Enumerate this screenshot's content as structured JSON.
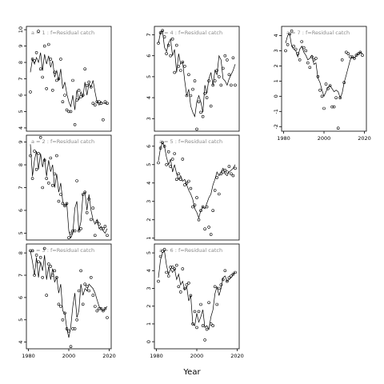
{
  "xlabel": "Year",
  "chart_data": {
    "type": "line",
    "title": "",
    "xlabel": "Year",
    "ylabel": "",
    "grid": false,
    "legend": "none",
    "xlim": [
      1979,
      2021
    ],
    "x_ticks": [
      1980,
      2000,
      2020
    ],
    "line_series_name": "",
    "points_series_name": "",
    "panels": [
      {
        "label": "a = 1  :  f=Residual catch",
        "row": 0,
        "col": 0,
        "ylim": [
          3.8,
          10.2
        ],
        "y_ticks": [
          4,
          5,
          6,
          7,
          8,
          9,
          10
        ],
        "show_x_ticks": false,
        "x": [
          1981,
          1982,
          1983,
          1984,
          1985,
          1986,
          1987,
          1988,
          1989,
          1990,
          1991,
          1992,
          1993,
          1994,
          1995,
          1996,
          1997,
          1998,
          1999,
          2000,
          2001,
          2002,
          2003,
          2004,
          2005,
          2006,
          2007,
          2008,
          2009,
          2010,
          2011,
          2012,
          2013,
          2014,
          2015,
          2016,
          2017,
          2018,
          2019
        ],
        "line": [
          7.4,
          8.2,
          7.9,
          8.3,
          8.0,
          8.6,
          7.5,
          8.5,
          7.9,
          8.4,
          7.7,
          8.1,
          7.1,
          7.5,
          6.9,
          7.6,
          6.4,
          6.8,
          6.1,
          5.6,
          5.3,
          6.0,
          5.1,
          6.3,
          5.7,
          6.2,
          5.9,
          6.8,
          6.0,
          6.7,
          6.5,
          6.9,
          6.2,
          5.6,
          5.4,
          5.6,
          5.5,
          5.5,
          5.5
        ],
        "points": [
          6.2,
          8.2,
          8.1,
          8.6,
          9.9,
          7.6,
          7.1,
          9.0,
          6.4,
          9.1,
          8.2,
          6.3,
          7.4,
          6.9,
          7.0,
          8.2,
          5.6,
          6.0,
          5.1,
          5.0,
          5.0,
          6.9,
          4.2,
          5.7,
          6.3,
          5.9,
          6.0,
          7.6,
          6.6,
          6.8,
          6.5,
          5.5,
          5.4,
          5.6,
          5.6,
          5.5,
          4.5,
          5.6,
          5.5
        ]
      },
      {
        "label": "a = 2  :  f=Residual catch",
        "row": 1,
        "col": 0,
        "ylim": [
          4.7,
          9.3
        ],
        "y_ticks": [
          5,
          6,
          7,
          8,
          9
        ],
        "show_x_ticks": false,
        "x": [
          1981,
          1982,
          1983,
          1984,
          1985,
          1986,
          1987,
          1988,
          1989,
          1990,
          1991,
          1992,
          1993,
          1994,
          1995,
          1996,
          1997,
          1998,
          1999,
          2000,
          2001,
          2002,
          2003,
          2004,
          2005,
          2006,
          2007,
          2008,
          2009,
          2010,
          2011,
          2012,
          2013,
          2014,
          2015,
          2016,
          2017,
          2018,
          2019
        ],
        "line": [
          8.9,
          7.5,
          8.2,
          8.6,
          7.8,
          8.5,
          7.9,
          8.3,
          7.5,
          8.2,
          7.7,
          8.0,
          7.0,
          7.6,
          6.8,
          7.2,
          6.4,
          6.2,
          6.3,
          5.1,
          4.8,
          5.0,
          6.1,
          6.4,
          5.1,
          5.5,
          6.7,
          6.8,
          6.0,
          6.7,
          6.0,
          5.6,
          5.4,
          5.6,
          5.2,
          5.3,
          5.1,
          5.0,
          5.2
        ],
        "points": [
          8.4,
          7.4,
          8.6,
          7.8,
          8.5,
          9.2,
          7.0,
          8.2,
          7.4,
          7.2,
          8.3,
          7.1,
          7.6,
          8.4,
          6.4,
          6.7,
          6.3,
          6.2,
          6.3,
          4.8,
          5.0,
          5.1,
          5.1,
          7.3,
          5.1,
          5.2,
          6.7,
          6.8,
          5.9,
          6.5,
          5.6,
          6.1,
          4.9,
          5.5,
          5.4,
          5.2,
          5.2,
          5.3,
          4.9
        ]
      },
      {
        "label": "a = 3  :  f=Residual catch",
        "row": 2,
        "col": 0,
        "ylim": [
          3.7,
          8.4
        ],
        "y_ticks": [
          4,
          5,
          6,
          7,
          8
        ],
        "show_x_ticks": true,
        "x": [
          1981,
          1982,
          1983,
          1984,
          1985,
          1986,
          1987,
          1988,
          1989,
          1990,
          1991,
          1992,
          1993,
          1994,
          1995,
          1996,
          1997,
          1998,
          1999,
          2000,
          2001,
          2002,
          2003,
          2004,
          2005,
          2006,
          2007,
          2008,
          2009,
          2010,
          2011,
          2012,
          2013,
          2014,
          2015,
          2016,
          2017,
          2018,
          2019
        ],
        "line": [
          8.1,
          7.6,
          7.0,
          7.8,
          6.9,
          7.6,
          7.2,
          7.9,
          6.8,
          7.4,
          6.8,
          7.3,
          6.7,
          6.9,
          6.2,
          6.6,
          5.4,
          5.3,
          4.6,
          4.2,
          4.7,
          5.6,
          6.2,
          5.1,
          5.4,
          6.6,
          6.1,
          6.4,
          6.3,
          6.6,
          6.5,
          6.4,
          6.2,
          5.9,
          5.6,
          5.5,
          5.4,
          5.5,
          5.6
        ],
        "points": [
          8.1,
          8.1,
          7.0,
          7.9,
          7.6,
          7.8,
          6.9,
          8.2,
          6.1,
          7.5,
          7.4,
          7.0,
          7.2,
          6.9,
          5.7,
          5.6,
          5.0,
          5.3,
          4.6,
          4.5,
          3.8,
          4.6,
          4.6,
          5.0,
          6.3,
          7.2,
          5.7,
          6.6,
          6.5,
          6.3,
          6.9,
          6.1,
          5.6,
          5.4,
          5.5,
          5.5,
          5.4,
          5.5,
          5.1
        ]
      },
      {
        "label": "a = 4  :  f=Residual catch",
        "row": 0,
        "col": 1,
        "ylim": [
          2.4,
          7.4
        ],
        "y_ticks": [
          3,
          4,
          5,
          6,
          7
        ],
        "show_x_ticks": false,
        "x": [
          1981,
          1982,
          1983,
          1984,
          1985,
          1986,
          1987,
          1988,
          1989,
          1990,
          1991,
          1992,
          1993,
          1994,
          1995,
          1996,
          1997,
          1998,
          1999,
          2000,
          2001,
          2002,
          2003,
          2004,
          2005,
          2006,
          2007,
          2008,
          2009,
          2010,
          2011,
          2012,
          2013,
          2014,
          2015,
          2016,
          2017,
          2018,
          2019
        ],
        "line": [
          6.6,
          7.1,
          7.2,
          6.4,
          6.2,
          6.6,
          6.8,
          6.0,
          6.3,
          5.2,
          6.1,
          5.6,
          5.7,
          4.8,
          4.1,
          4.4,
          3.6,
          3.3,
          3.1,
          3.8,
          4.1,
          3.8,
          3.3,
          4.6,
          4.2,
          4.9,
          5.2,
          4.6,
          5.3,
          5.1,
          6.0,
          5.8,
          4.9,
          4.8,
          4.6,
          4.9,
          5.1,
          5.3,
          5.6
        ],
        "points": [
          6.6,
          7.1,
          7.2,
          6.9,
          6.1,
          6.5,
          6.0,
          6.8,
          5.2,
          6.5,
          5.5,
          5.3,
          5.7,
          5.5,
          4.1,
          5.1,
          4.1,
          4.4,
          4.8,
          2.5,
          3.8,
          3.3,
          3.1,
          4.2,
          4.0,
          4.8,
          3.6,
          4.6,
          4.8,
          5.3,
          5.0,
          4.6,
          5.4,
          6.0,
          5.8,
          5.1,
          4.6,
          5.9,
          4.6
        ]
      },
      {
        "label": "a = 5  :  f=Residual catch",
        "row": 1,
        "col": 1,
        "ylim": [
          0.9,
          6.6
        ],
        "y_ticks": [
          1,
          2,
          3,
          4,
          5,
          6
        ],
        "show_x_ticks": false,
        "x": [
          1981,
          1982,
          1983,
          1984,
          1985,
          1986,
          1987,
          1988,
          1989,
          1990,
          1991,
          1992,
          1993,
          1994,
          1995,
          1996,
          1997,
          1998,
          1999,
          2000,
          2001,
          2002,
          2003,
          2004,
          2005,
          2006,
          2007,
          2008,
          2009,
          2010,
          2011,
          2012,
          2013,
          2014,
          2015,
          2016,
          2017,
          2018,
          2019
        ],
        "line": [
          5.2,
          5.9,
          6.2,
          6.0,
          5.4,
          5.0,
          5.3,
          4.6,
          5.0,
          4.5,
          4.2,
          4.4,
          4.1,
          4.2,
          3.9,
          3.6,
          3.4,
          3.1,
          2.6,
          2.4,
          2.1,
          2.5,
          2.7,
          2.6,
          2.9,
          3.2,
          3.4,
          3.9,
          4.2,
          4.6,
          4.4,
          4.6,
          4.8,
          4.5,
          4.4,
          4.6,
          4.7,
          4.8,
          5.0
        ],
        "points": [
          5.1,
          5.9,
          6.2,
          6.0,
          5.0,
          5.7,
          4.9,
          5.3,
          5.6,
          4.2,
          4.5,
          4.2,
          5.3,
          3.9,
          4.0,
          4.1,
          3.7,
          2.7,
          2.8,
          3.2,
          2.0,
          2.5,
          2.7,
          1.5,
          2.7,
          1.6,
          1.2,
          2.5,
          3.6,
          4.3,
          3.4,
          4.5,
          4.6,
          4.7,
          4.6,
          4.9,
          4.5,
          4.4,
          4.8
        ]
      },
      {
        "label": "a = 6  :  f=Residual catch",
        "row": 2,
        "col": 1,
        "ylim": [
          -0.4,
          5.5
        ],
        "y_ticks": [
          0,
          1,
          2,
          3,
          4,
          5
        ],
        "show_x_ticks": true,
        "x": [
          1981,
          1982,
          1983,
          1984,
          1985,
          1986,
          1987,
          1988,
          1989,
          1990,
          1991,
          1992,
          1993,
          1994,
          1995,
          1996,
          1997,
          1998,
          1999,
          2000,
          2001,
          2002,
          2003,
          2004,
          2005,
          2006,
          2007,
          2008,
          2009,
          2010,
          2011,
          2012,
          2013,
          2014,
          2015,
          2016,
          2017,
          2018,
          2019
        ],
        "line": [
          3.6,
          4.6,
          5.0,
          5.1,
          4.3,
          3.8,
          4.1,
          3.9,
          4.1,
          3.5,
          3.8,
          3.2,
          3.4,
          2.9,
          3.1,
          2.3,
          2.6,
          1.0,
          0.9,
          1.6,
          1.1,
          1.4,
          1.8,
          0.8,
          0.9,
          0.7,
          1.4,
          1.8,
          2.7,
          3.1,
          2.6,
          3.0,
          3.6,
          3.7,
          3.4,
          3.5,
          3.6,
          3.8,
          3.9
        ],
        "points": [
          3.4,
          4.8,
          5.1,
          5.2,
          3.9,
          3.7,
          4.2,
          4.2,
          4.1,
          4.3,
          3.1,
          2.8,
          4.1,
          3.0,
          3.2,
          3.3,
          2.6,
          1.0,
          1.7,
          0.8,
          1.7,
          2.1,
          0.9,
          0.1,
          0.7,
          2.2,
          1.0,
          0.9,
          3.1,
          2.1,
          3.0,
          3.2,
          3.5,
          4.0,
          3.4,
          3.6,
          3.7,
          3.8,
          3.9
        ]
      },
      {
        "label": "a = 7  :  f=Residual catch",
        "row": 0,
        "col": 2,
        "ylim": [
          -2.3,
          4.6
        ],
        "y_ticks": [
          -2,
          -1,
          0,
          1,
          2,
          3,
          4
        ],
        "show_x_ticks": true,
        "x": [
          1981,
          1982,
          1983,
          1984,
          1985,
          1986,
          1987,
          1988,
          1989,
          1990,
          1991,
          1992,
          1993,
          1994,
          1995,
          1996,
          1997,
          1998,
          1999,
          2000,
          2001,
          2002,
          2003,
          2004,
          2005,
          2006,
          2007,
          2008,
          2009,
          2010,
          2011,
          2012,
          2013,
          2014,
          2015,
          2016,
          2017,
          2018,
          2019
        ],
        "line": [
          3.5,
          4.0,
          4.1,
          3.3,
          3.1,
          3.0,
          2.6,
          3.1,
          3.3,
          2.9,
          2.7,
          2.4,
          2.5,
          2.7,
          2.1,
          2.2,
          1.2,
          0.9,
          0.4,
          0.0,
          0.3,
          0.6,
          0.7,
          0.5,
          0.3,
          0.4,
          0.3,
          -0.1,
          0.2,
          0.9,
          1.4,
          1.9,
          2.4,
          2.6,
          2.5,
          2.7,
          2.8,
          2.9,
          2.8
        ],
        "points": [
          3.0,
          3.4,
          4.1,
          4.3,
          3.3,
          3.1,
          2.8,
          2.4,
          3.6,
          3.2,
          3.0,
          2.2,
          1.9,
          2.6,
          2.4,
          2.5,
          1.3,
          0.4,
          0.0,
          -0.8,
          0.8,
          0.5,
          0.7,
          -0.7,
          -0.7,
          -0.1,
          -2.1,
          -0.1,
          2.4,
          0.9,
          2.9,
          2.8,
          2.6,
          2.6,
          2.5,
          2.7,
          2.8,
          2.9,
          2.7
        ]
      }
    ]
  }
}
